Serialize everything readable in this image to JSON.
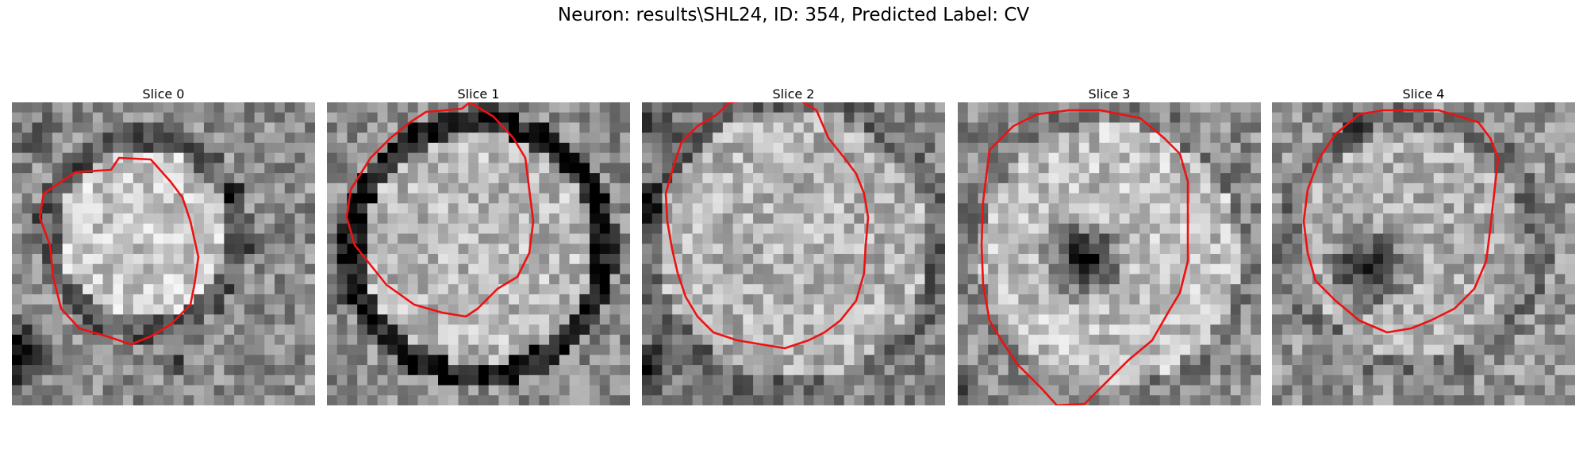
{
  "figure": {
    "title": "Neuron: results\\SHL24, ID: 354, Predicted Label: CV"
  },
  "colors": {
    "contour": "#ee1111",
    "background": "#ffffff",
    "colormap": "gray"
  },
  "slices": [
    {
      "title": "Slice 0",
      "image_description": "grayscale patch with bright roundish cell body, dark rim, dark spots at lower-left",
      "contour": "closed contour around cell body, left-center"
    },
    {
      "title": "Slice 1",
      "image_description": "grayscale patch with bright round cell, prominent dark ring border",
      "contour": "closed contour following dark ring"
    },
    {
      "title": "Slice 2",
      "image_description": "grayscale patch with large bright textured cell filling most of frame",
      "contour": "large contour clipped at top edge"
    },
    {
      "title": "Slice 3",
      "image_description": "grayscale patch with bright ring and dark center (nucleus)",
      "contour": "large contour clipped at bottom edge"
    },
    {
      "title": "Slice 4",
      "image_description": "grayscale patch with bright cell and dark blotch left of center",
      "contour": "closed contour around cell"
    }
  ]
}
